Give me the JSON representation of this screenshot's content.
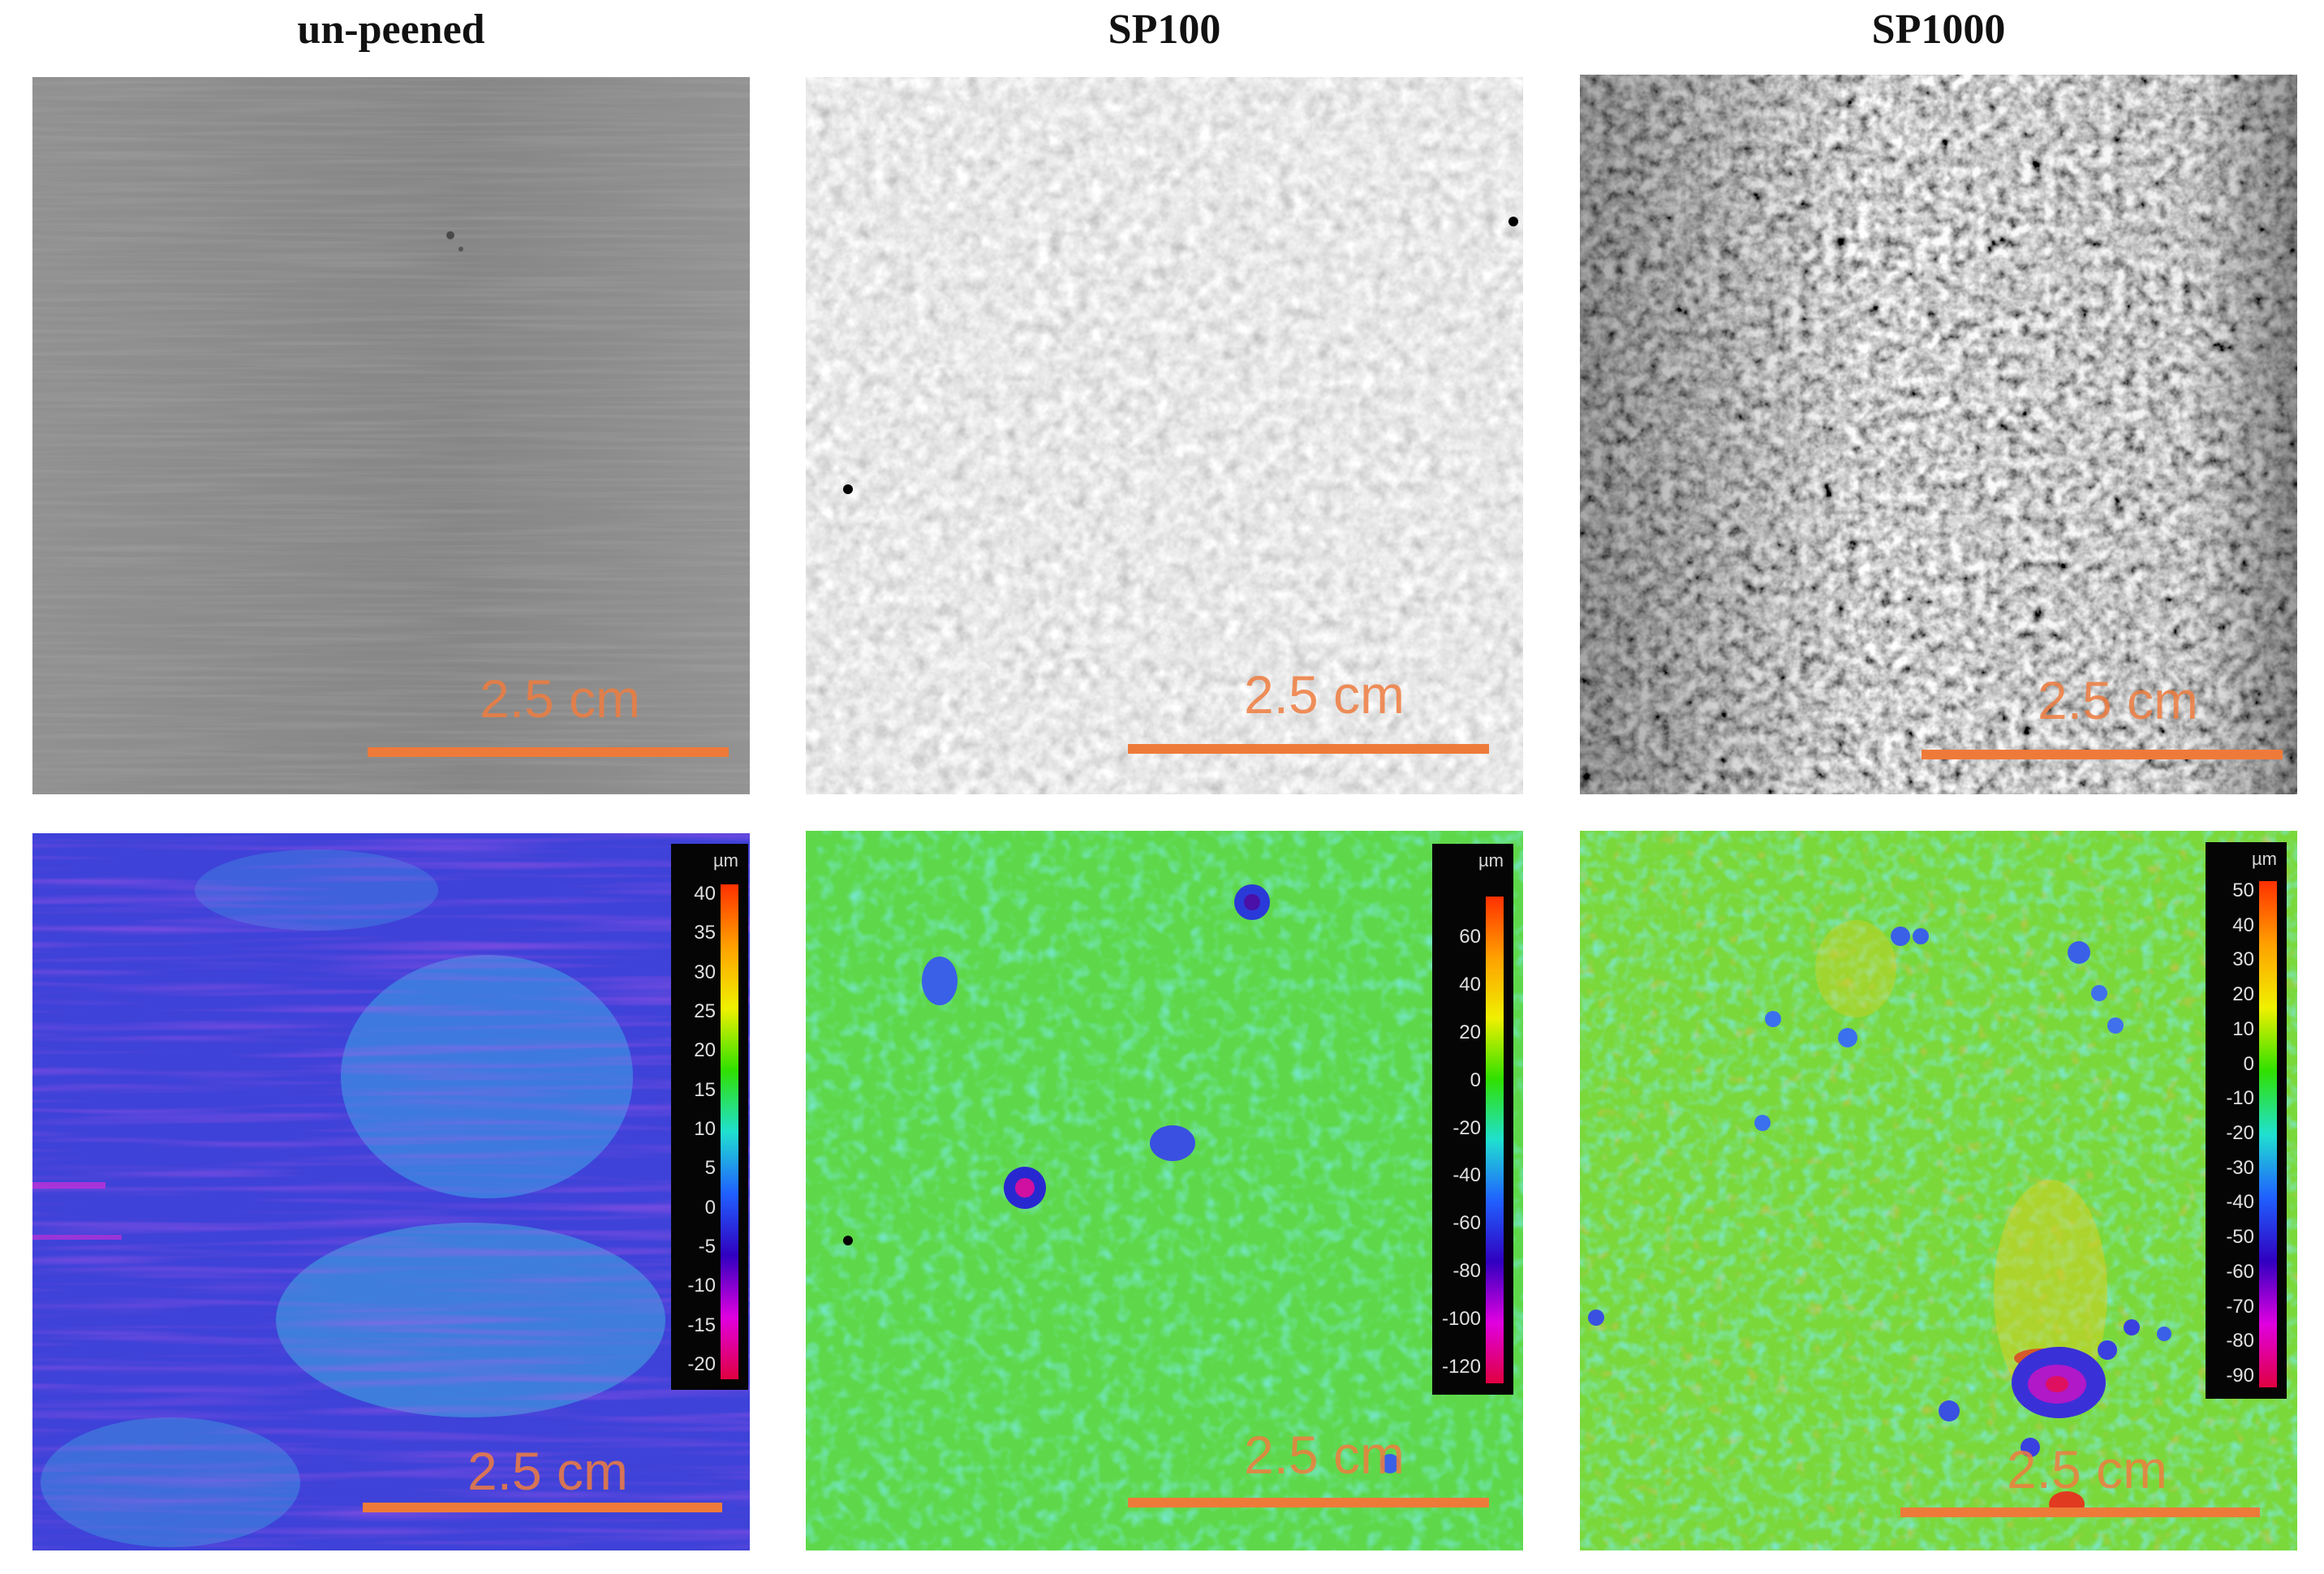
{
  "columns": [
    {
      "title": "un-peened"
    },
    {
      "title": "SP100"
    },
    {
      "title": "SP1000"
    }
  ],
  "scale_bar_label": "2.5 cm",
  "colorbars": [
    {
      "unit": "µm",
      "ticks": [
        "40",
        "35",
        "30",
        "25",
        "20",
        "15",
        "10",
        "5",
        "0",
        "-5",
        "-10",
        "-15",
        "-20"
      ]
    },
    {
      "unit": "µm",
      "ticks": [
        "60",
        "40",
        "20",
        "0",
        "-20",
        "-40",
        "-60",
        "-80",
        "-100",
        "-120"
      ]
    },
    {
      "unit": "µm",
      "ticks": [
        "50",
        "40",
        "30",
        "20",
        "10",
        "0",
        "-10",
        "-20",
        "-30",
        "-40",
        "-50",
        "-60",
        "-70",
        "-80",
        "-90"
      ]
    }
  ],
  "colors": {
    "scale_bar": "#ee7a3a",
    "colormap": [
      "#ff3000",
      "#ffa000",
      "#f0f000",
      "#30e000",
      "#20e0d0",
      "#2060ff",
      "#3000c0",
      "#e000e0",
      "#e00040"
    ]
  }
}
